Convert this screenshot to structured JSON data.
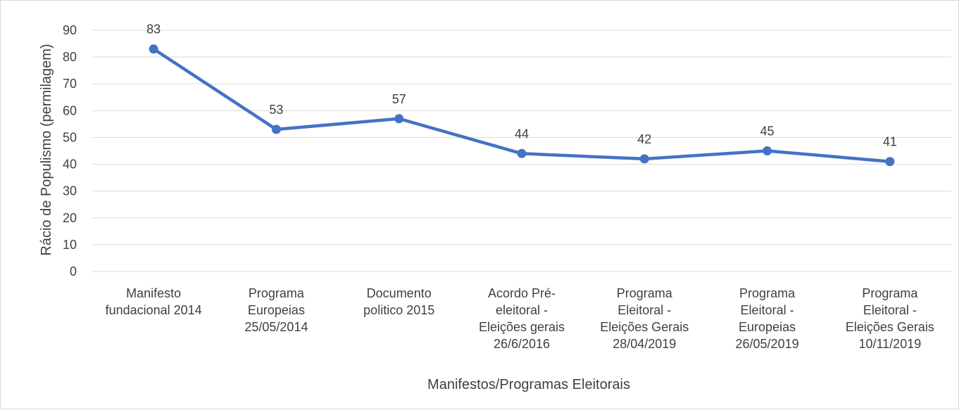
{
  "chart_data": {
    "type": "line",
    "title": "",
    "xlabel": "Manifestos/Programas Eleitorais",
    "ylabel": "Rácio de Populismo (permilagem)",
    "ylim": [
      0,
      90
    ],
    "yticks": [
      0,
      10,
      20,
      30,
      40,
      50,
      60,
      70,
      80,
      90
    ],
    "grid": true,
    "legend": "none",
    "categories": [
      [
        "Manifesto",
        "fundacional 2014"
      ],
      [
        "Programa",
        "Europeias",
        "25/05/2014"
      ],
      [
        "Documento",
        "politico 2015"
      ],
      [
        "Acordo Pré-",
        "eleitoral -",
        "Eleições gerais",
        "26/6/2016"
      ],
      [
        "Programa",
        "Eleitoral -",
        "Eleições Gerais",
        "28/04/2019"
      ],
      [
        "Programa",
        "Eleitoral -",
        "Europeias",
        "26/05/2019"
      ],
      [
        "Programa",
        "Eleitoral -",
        "Eleições Gerais",
        "10/11/2019"
      ]
    ],
    "series": [
      {
        "values": [
          83,
          53,
          57,
          44,
          42,
          45,
          41
        ],
        "color": "#4472c4",
        "data_labels": true
      }
    ]
  },
  "colors": {
    "grid": "#d9d9d9",
    "text": "#404040",
    "border": "#d9d9d9"
  }
}
